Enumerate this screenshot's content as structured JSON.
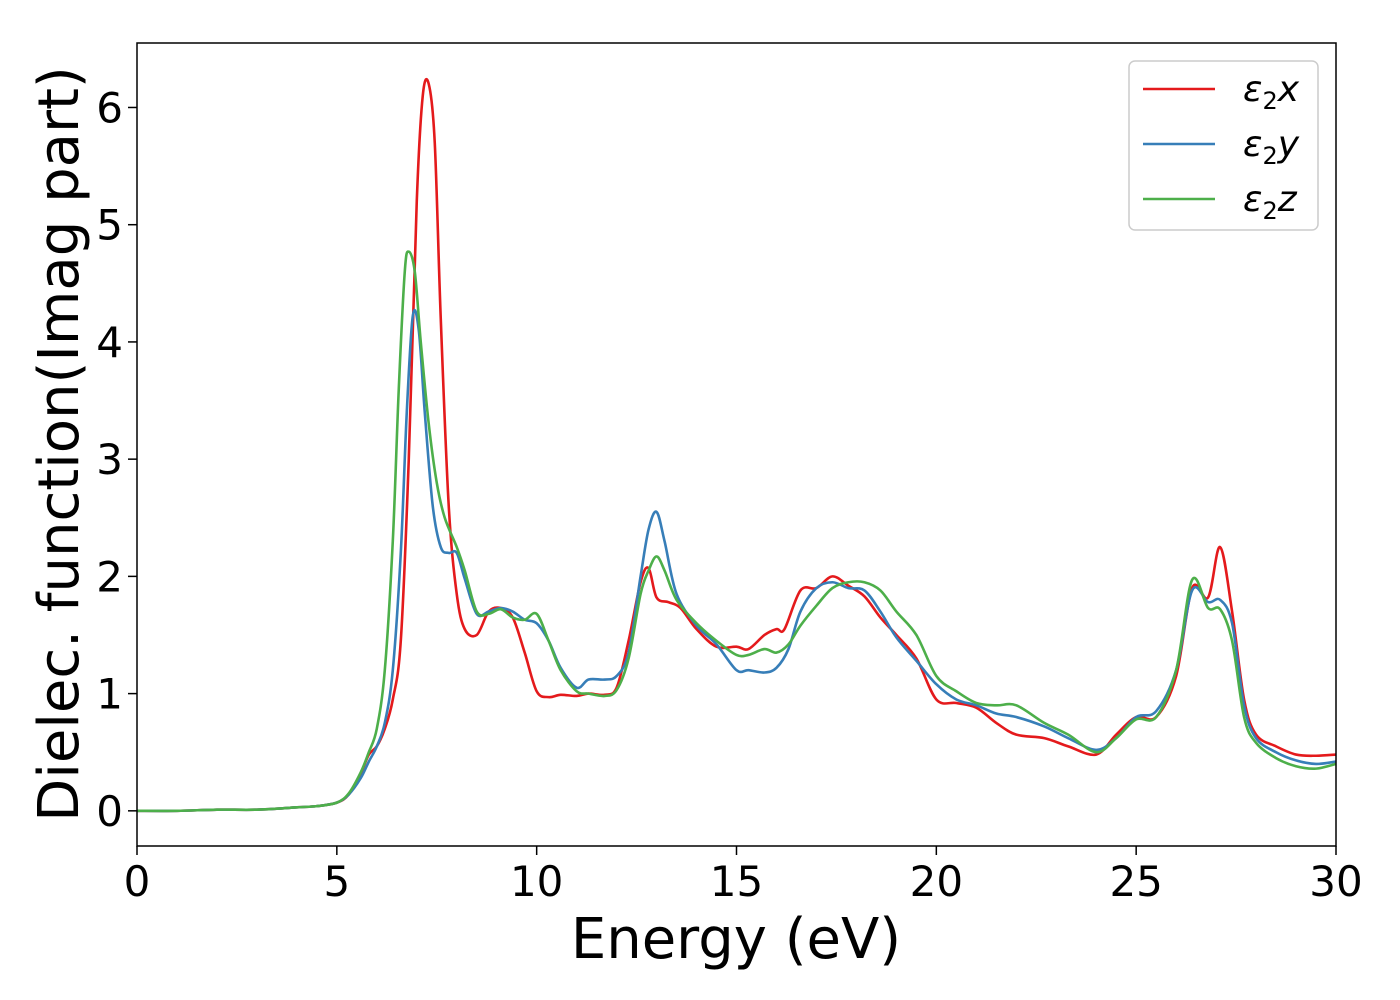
{
  "chart_data": {
    "type": "line",
    "title": "",
    "xlabel": "Energy (eV)",
    "ylabel": "Dielec. function(Imag part)",
    "xlim": [
      0,
      30
    ],
    "ylim": [
      -0.3,
      6.55
    ],
    "xticks": [
      0,
      5,
      10,
      15,
      20,
      25,
      30
    ],
    "yticks": [
      0,
      1,
      2,
      3,
      4,
      5,
      6
    ],
    "grid": false,
    "legend_position": "top-right",
    "series": [
      {
        "name": "ε2x",
        "legend_base": "ε",
        "legend_sub": "2",
        "legend_suffix": "x",
        "color": "#e41a1c",
        "x": [
          0,
          1,
          2,
          3,
          4,
          4.5,
          5,
          5.3,
          5.6,
          5.8,
          6.0,
          6.2,
          6.4,
          6.6,
          6.8,
          7.0,
          7.15,
          7.3,
          7.45,
          7.6,
          7.8,
          8.0,
          8.2,
          8.5,
          8.8,
          9.1,
          9.4,
          9.7,
          10.0,
          10.3,
          10.6,
          11.0,
          11.3,
          11.7,
          12.0,
          12.3,
          12.6,
          12.8,
          13.0,
          13.3,
          13.6,
          14.0,
          14.5,
          15.0,
          15.3,
          15.7,
          16.0,
          16.2,
          16.6,
          17.0,
          17.4,
          17.8,
          18.2,
          18.6,
          19.0,
          19.5,
          20.0,
          20.5,
          21.0,
          21.5,
          22.0,
          22.7,
          23.3,
          24.0,
          24.5,
          25.0,
          25.5,
          26.0,
          26.4,
          26.8,
          27.1,
          27.4,
          27.7,
          28.0,
          28.5,
          29.0,
          29.5,
          30.0
        ],
        "y": [
          0.0,
          0.0,
          0.01,
          0.01,
          0.03,
          0.04,
          0.07,
          0.14,
          0.32,
          0.48,
          0.55,
          0.7,
          0.95,
          1.45,
          3.0,
          5.2,
          6.1,
          6.2,
          5.7,
          4.2,
          2.6,
          1.85,
          1.55,
          1.5,
          1.7,
          1.73,
          1.65,
          1.35,
          1.02,
          0.97,
          0.99,
          0.98,
          1.0,
          0.99,
          1.05,
          1.45,
          1.95,
          2.07,
          1.82,
          1.78,
          1.73,
          1.55,
          1.4,
          1.4,
          1.38,
          1.5,
          1.55,
          1.55,
          1.88,
          1.9,
          2.0,
          1.92,
          1.83,
          1.65,
          1.5,
          1.3,
          0.95,
          0.92,
          0.88,
          0.75,
          0.65,
          0.62,
          0.55,
          0.48,
          0.65,
          0.8,
          0.8,
          1.15,
          1.9,
          1.82,
          2.25,
          1.7,
          0.95,
          0.65,
          0.55,
          0.48,
          0.47,
          0.48
        ]
      },
      {
        "name": "ε2y",
        "legend_base": "ε",
        "legend_sub": "2",
        "legend_suffix": "y",
        "color": "#377eb8",
        "x": [
          0,
          1,
          2,
          3,
          4,
          4.5,
          5,
          5.3,
          5.6,
          5.8,
          6.0,
          6.2,
          6.4,
          6.6,
          6.75,
          6.9,
          7.05,
          7.2,
          7.4,
          7.6,
          7.8,
          8.0,
          8.2,
          8.5,
          8.8,
          9.1,
          9.4,
          9.7,
          10.0,
          10.3,
          10.6,
          11.0,
          11.3,
          11.7,
          12.0,
          12.3,
          12.6,
          12.8,
          13.0,
          13.2,
          13.5,
          14.0,
          14.5,
          15.0,
          15.3,
          15.7,
          16.0,
          16.3,
          16.6,
          17.0,
          17.4,
          17.8,
          18.2,
          18.6,
          19.0,
          19.5,
          20.0,
          20.5,
          21.0,
          21.5,
          22.0,
          22.7,
          23.3,
          24.0,
          24.5,
          25.0,
          25.5,
          26.0,
          26.4,
          26.8,
          27.1,
          27.4,
          27.7,
          28.0,
          28.5,
          29.0,
          29.5,
          30.0
        ],
        "y": [
          0.0,
          0.0,
          0.01,
          0.01,
          0.03,
          0.04,
          0.07,
          0.14,
          0.28,
          0.42,
          0.55,
          0.75,
          1.2,
          2.2,
          3.4,
          4.22,
          4.1,
          3.4,
          2.6,
          2.25,
          2.2,
          2.2,
          1.98,
          1.68,
          1.7,
          1.73,
          1.7,
          1.63,
          1.6,
          1.45,
          1.22,
          1.05,
          1.12,
          1.12,
          1.15,
          1.35,
          2.0,
          2.4,
          2.55,
          2.3,
          1.85,
          1.58,
          1.42,
          1.2,
          1.2,
          1.18,
          1.22,
          1.38,
          1.7,
          1.9,
          1.95,
          1.9,
          1.88,
          1.7,
          1.48,
          1.28,
          1.08,
          0.95,
          0.9,
          0.83,
          0.8,
          0.72,
          0.62,
          0.52,
          0.62,
          0.8,
          0.85,
          1.2,
          1.88,
          1.78,
          1.8,
          1.6,
          0.9,
          0.62,
          0.5,
          0.43,
          0.4,
          0.42
        ]
      },
      {
        "name": "ε2z",
        "legend_base": "ε",
        "legend_sub": "2",
        "legend_suffix": "z",
        "color": "#4daf4a",
        "x": [
          0,
          1,
          2,
          3,
          4,
          4.5,
          5,
          5.3,
          5.6,
          5.8,
          6.0,
          6.2,
          6.4,
          6.55,
          6.7,
          6.8,
          6.95,
          7.1,
          7.3,
          7.5,
          7.7,
          8.0,
          8.2,
          8.5,
          8.8,
          9.1,
          9.4,
          9.7,
          10.0,
          10.3,
          10.6,
          11.0,
          11.3,
          11.7,
          12.0,
          12.3,
          12.6,
          12.8,
          13.0,
          13.2,
          13.5,
          14.0,
          14.5,
          15.0,
          15.3,
          15.7,
          16.0,
          16.3,
          16.6,
          17.0,
          17.4,
          17.8,
          18.2,
          18.6,
          19.0,
          19.5,
          20.0,
          20.5,
          21.0,
          21.5,
          22.0,
          22.7,
          23.3,
          24.0,
          24.5,
          25.0,
          25.5,
          26.0,
          26.4,
          26.8,
          27.1,
          27.4,
          27.7,
          28.0,
          28.5,
          29.0,
          29.5,
          30.0
        ],
        "y": [
          0.0,
          0.0,
          0.01,
          0.01,
          0.03,
          0.04,
          0.07,
          0.15,
          0.33,
          0.5,
          0.7,
          1.2,
          2.3,
          3.6,
          4.6,
          4.77,
          4.6,
          4.0,
          3.3,
          2.8,
          2.5,
          2.25,
          2.05,
          1.7,
          1.68,
          1.72,
          1.65,
          1.63,
          1.68,
          1.45,
          1.2,
          1.02,
          1.0,
          0.98,
          1.03,
          1.3,
          1.85,
          2.05,
          2.17,
          2.05,
          1.8,
          1.6,
          1.45,
          1.33,
          1.33,
          1.38,
          1.35,
          1.42,
          1.58,
          1.75,
          1.9,
          1.95,
          1.95,
          1.88,
          1.7,
          1.5,
          1.15,
          1.02,
          0.92,
          0.9,
          0.9,
          0.75,
          0.65,
          0.5,
          0.62,
          0.78,
          0.8,
          1.2,
          1.97,
          1.73,
          1.72,
          1.45,
          0.8,
          0.58,
          0.45,
          0.38,
          0.36,
          0.4
        ]
      }
    ]
  }
}
